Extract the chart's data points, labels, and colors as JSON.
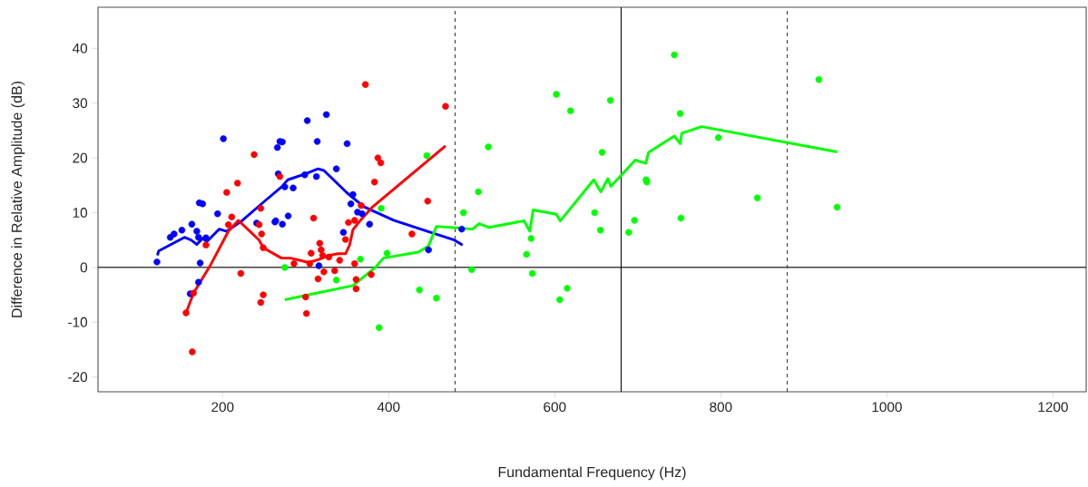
{
  "chart_data": {
    "type": "scatter",
    "xlabel": "Fundamental Frequency (Hz)",
    "ylabel": "Difference in Relative Amplitude (dB)",
    "xlim": [
      50,
      1240
    ],
    "ylim": [
      -22.7,
      47.5
    ],
    "xticks": [
      200,
      400,
      600,
      800,
      1000,
      1200
    ],
    "yticks": [
      -20,
      -10,
      0,
      10,
      20,
      30,
      40
    ],
    "grid": false,
    "ref_lines": [
      {
        "axis": "y",
        "value": 0,
        "color": "#000000",
        "line_style": "solid"
      },
      {
        "axis": "x",
        "value": 480,
        "color": "#404040",
        "line_style": "dashed"
      },
      {
        "axis": "x",
        "value": 680,
        "color": "#000000",
        "line_style": "solid"
      },
      {
        "axis": "x",
        "value": 880,
        "color": "#404040",
        "line_style": "dashed"
      }
    ],
    "series": [
      {
        "type": "scatter",
        "marker": "circle",
        "color": "#0000ff",
        "x": [
          121,
          137,
          141.6,
          151,
          163,
          169,
          171,
          172,
          176,
          180,
          173,
          171,
          161,
          194,
          201,
          241,
          263,
          266,
          269,
          267,
          272,
          302,
          325,
          314,
          350,
          337,
          299,
          313,
          275,
          285,
          357,
          354.5,
          362.5,
          368,
          279,
          272,
          264,
          345.5,
          377,
          448,
          316,
          488
        ],
        "values": [
          1,
          5.5,
          6.1,
          6.8,
          7.9,
          6.6,
          5.5,
          11.8,
          11.6,
          5.4,
          0.8,
          -2.7,
          -4.8,
          9.8,
          23.5,
          8.1,
          8.3,
          21.9,
          23,
          17.1,
          22.9,
          26.8,
          27.9,
          23,
          22.6,
          18,
          16.9,
          16.6,
          14.7,
          14.5,
          13.3,
          11.6,
          10.1,
          9.8,
          9.4,
          7.9,
          8.5,
          6.4,
          7.9,
          3.2,
          0.3,
          7
        ]
      },
      {
        "type": "scatter",
        "marker": "circle",
        "color": "#ff0000",
        "x": [
          238,
          218,
          205,
          211,
          207,
          246,
          244,
          247,
          249,
          180,
          222,
          249,
          246,
          156,
          165,
          163.5,
          269,
          372,
          468.5,
          387,
          390.5,
          383,
          447,
          367,
          309.6,
          428,
          351.6,
          359,
          348,
          317,
          318.7,
          306.6,
          320.5,
          328,
          341,
          286,
          305,
          359,
          322,
          335,
          315,
          360.8,
          360.8,
          379,
          300,
          301
        ],
        "values": [
          20.6,
          15.4,
          13.7,
          9.2,
          7.8,
          10.8,
          7.8,
          6.1,
          3.6,
          4.1,
          -1.1,
          -5,
          -6.4,
          -8.3,
          -4.7,
          -15.4,
          16.6,
          33.4,
          29.4,
          20,
          19.1,
          15.6,
          12.1,
          11.3,
          9,
          6.1,
          8.2,
          8.6,
          5.1,
          4.4,
          3.2,
          2.6,
          2.2,
          1.9,
          1.3,
          0.7,
          0.7,
          0.7,
          -0.8,
          -0.6,
          -2.1,
          -2.2,
          -3.9,
          -1.3,
          -5.4,
          -8.4
        ]
      },
      {
        "type": "scatter",
        "marker": "circle",
        "color": "#00ff00",
        "x": [
          275,
          337,
          366,
          398,
          391,
          446,
          437,
          388.5,
          457.5,
          490,
          500,
          508,
          520,
          566,
          571.5,
          573,
          602,
          606,
          615,
          619,
          648,
          655,
          657,
          667,
          689,
          696,
          710,
          711,
          744,
          751,
          752,
          797,
          844,
          918,
          940
        ],
        "values": [
          0,
          -2.3,
          1.5,
          2.6,
          10.8,
          20.4,
          -4.1,
          -11,
          -5.6,
          10,
          -0.4,
          13.8,
          22,
          2.4,
          5.3,
          -1.1,
          31.6,
          -5.9,
          -3.8,
          28.6,
          10,
          6.8,
          21,
          30.5,
          6.4,
          8.6,
          16,
          15.6,
          38.8,
          28.1,
          9,
          23.7,
          12.7,
          34.3,
          11
        ]
      },
      {
        "type": "line",
        "marker": "none",
        "color": "#0000ff",
        "x": [
          121.6,
          123,
          154,
          162,
          169,
          176,
          181,
          196,
          205,
          224,
          253,
          271,
          278.6,
          300,
          315,
          322,
          350,
          370,
          406,
          479,
          489
        ],
        "values": [
          2.2,
          3,
          5.5,
          5,
          4.2,
          5.3,
          4.7,
          7,
          6.6,
          8.6,
          12.4,
          14.7,
          16,
          17.1,
          18,
          17.7,
          13.6,
          11.1,
          8.6,
          5,
          4.1
        ]
      },
      {
        "type": "line",
        "marker": "none",
        "color": "#ff0000",
        "x": [
          156,
          165,
          185,
          207,
          219,
          244,
          249,
          271,
          282,
          304,
          315,
          328,
          339,
          348,
          353,
          357,
          366,
          381,
          468.5
        ],
        "values": [
          -8.3,
          -4.7,
          0.3,
          6.6,
          8.6,
          5,
          3.6,
          1.7,
          1.7,
          0.9,
          1.4,
          2.2,
          2.5,
          2.5,
          4.1,
          6.9,
          8.6,
          11.1,
          22.2
        ]
      },
      {
        "type": "line",
        "marker": "none",
        "color": "#00ff00",
        "x": [
          275,
          357,
          384,
          393.6,
          435.6,
          448,
          457.5,
          501,
          509,
          521,
          563,
          570,
          574,
          602,
          606.6,
          647,
          655.5,
          664,
          667.6,
          697,
          709.6,
          713,
          744,
          751,
          753,
          777,
          940
        ],
        "values": [
          -5.9,
          -3.3,
          0,
          1.7,
          2.8,
          3.9,
          7.5,
          7.0,
          8.0,
          7.3,
          8.5,
          6.6,
          10.5,
          9.7,
          8.5,
          16.0,
          13.8,
          16.2,
          14.8,
          19.6,
          19,
          21,
          24,
          22.6,
          24.5,
          25.7,
          21.1
        ]
      }
    ]
  }
}
